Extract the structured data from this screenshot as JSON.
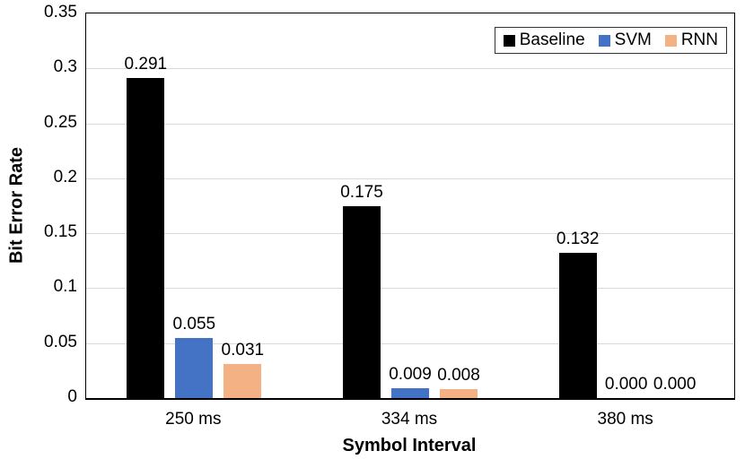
{
  "chart_data": {
    "type": "bar",
    "title": "",
    "xlabel": "Symbol Interval",
    "ylabel": "Bit Error Rate",
    "categories": [
      "250 ms",
      "334 ms",
      "380 ms"
    ],
    "series": [
      {
        "name": "Baseline",
        "color": "#000000",
        "values": [
          0.291,
          0.175,
          0.132
        ],
        "labels": [
          "0.291",
          "0.175",
          "0.132"
        ]
      },
      {
        "name": "SVM",
        "color": "#4472C4",
        "values": [
          0.055,
          0.009,
          0.0
        ],
        "labels": [
          "0.055",
          "0.009",
          "0.000"
        ]
      },
      {
        "name": "RNN",
        "color": "#F4B183",
        "values": [
          0.031,
          0.008,
          0.0
        ],
        "labels": [
          "0.031",
          "0.008",
          "0.000"
        ]
      }
    ],
    "ylim": [
      0,
      0.35
    ],
    "yticks": [
      "0",
      "0.05",
      "0.1",
      "0.15",
      "0.2",
      "0.25",
      "0.3",
      "0.35"
    ],
    "grid": true,
    "gridline_color": "#D9D9D9",
    "axis_color": "#000000",
    "legend_position": "top-right",
    "background_color": "#FFFFFF"
  }
}
